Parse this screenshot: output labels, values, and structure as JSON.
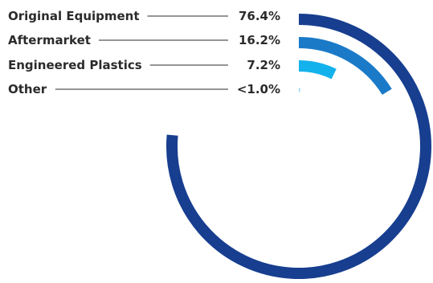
{
  "chart_data": {
    "type": "radial-bar",
    "series": [
      {
        "name": "Original Equipment",
        "value": 76.4,
        "label": "76.4%",
        "color": "#173e8f"
      },
      {
        "name": "Aftermarket",
        "value": 16.2,
        "label": "16.2%",
        "color": "#1b7ac8"
      },
      {
        "name": "Engineered Plastics",
        "value": 7.2,
        "label": "7.2%",
        "color": "#14b2ec"
      },
      {
        "name": "Other",
        "value": 0.2,
        "label": "<1.0%",
        "color": "#8fd6f4"
      }
    ]
  }
}
